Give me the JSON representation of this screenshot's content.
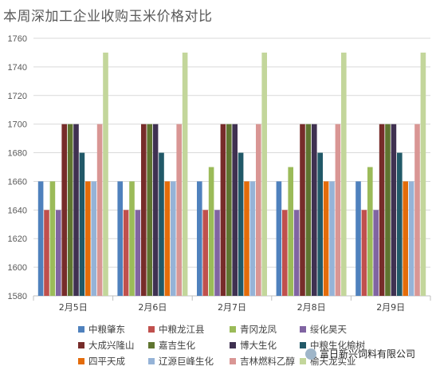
{
  "chart_data": {
    "type": "bar",
    "title": "本周深加工企业收购玉米价格对比",
    "xlabel": "",
    "ylabel": "",
    "ylim": [
      1580,
      1760
    ],
    "yticks": [
      1580,
      1600,
      1620,
      1640,
      1660,
      1680,
      1700,
      1720,
      1740,
      1760
    ],
    "grid": "horizontal",
    "legend_placement": "bottom",
    "categories": [
      "2月5日",
      "2月6日",
      "2月7日",
      "2月8日",
      "2月9日"
    ],
    "series": [
      {
        "name": "中粮肇东",
        "color": "#4f81bd",
        "values": [
          1660,
          1660,
          1660,
          1660,
          1660
        ]
      },
      {
        "name": "中粮龙江县",
        "color": "#c0504d",
        "values": [
          1640,
          1640,
          1640,
          1640,
          1640
        ]
      },
      {
        "name": "青冈龙凤",
        "color": "#9bbb59",
        "values": [
          1660,
          1660,
          1670,
          1670,
          1670
        ]
      },
      {
        "name": "绥化昊天",
        "color": "#8064a2",
        "values": [
          1640,
          1640,
          1640,
          1640,
          1640
        ]
      },
      {
        "name": "大成兴隆山",
        "color": "#772c2a",
        "values": [
          1700,
          1700,
          1700,
          1700,
          1700
        ]
      },
      {
        "name": "嘉吉生化",
        "color": "#5f7530",
        "values": [
          1700,
          1700,
          1700,
          1700,
          1700
        ]
      },
      {
        "name": "博大生化",
        "color": "#3f3151",
        "values": [
          1700,
          1700,
          1700,
          1700,
          1700
        ]
      },
      {
        "name": "中粮生化榆树",
        "color": "#215968",
        "values": [
          1680,
          1680,
          1680,
          1680,
          1680
        ]
      },
      {
        "name": "四平天成",
        "color": "#e46c0a",
        "values": [
          1660,
          1660,
          1660,
          1660,
          1660
        ]
      },
      {
        "name": "辽源巨峰生化",
        "color": "#95b3d7",
        "values": [
          1660,
          1660,
          1660,
          1660,
          1660
        ]
      },
      {
        "name": "吉林燃料乙醇",
        "color": "#d99694",
        "values": [
          1700,
          1700,
          1700,
          1700,
          1700
        ]
      },
      {
        "name": "榆天龙实业",
        "color": "#c3d69b",
        "values": [
          1750,
          1750,
          1750,
          1750,
          1750
        ]
      }
    ]
  },
  "watermark": {
    "text": "富日新兴饲料有限公司"
  }
}
